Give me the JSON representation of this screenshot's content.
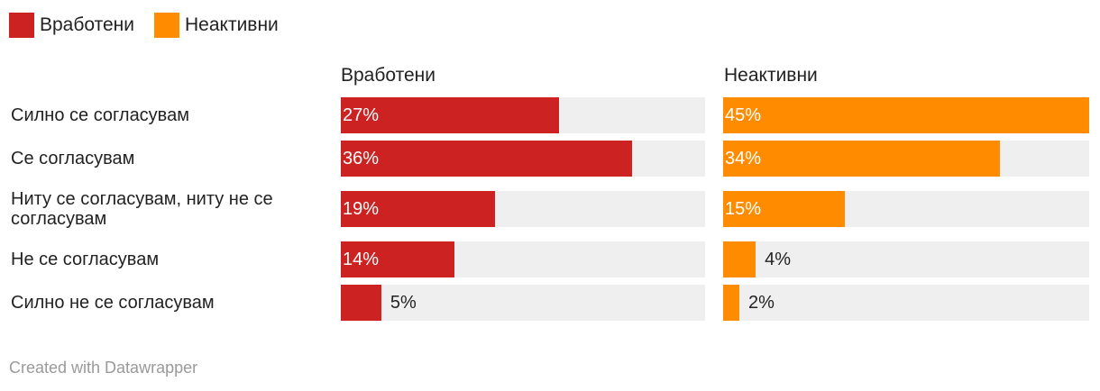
{
  "legend": [
    {
      "label": "Вработени",
      "color": "#cc2222"
    },
    {
      "label": "Неактивни",
      "color": "#ff8c00"
    }
  ],
  "footer": "Created with Datawrapper",
  "chart_data": {
    "type": "bar",
    "orientation": "horizontal",
    "categories": [
      "Силно се согласувам",
      "Се согласувам",
      "Ниту се согласувам, ниту не се согласувам",
      "Не се согласувам",
      "Силно не се согласувам"
    ],
    "series": [
      {
        "name": "Вработени",
        "color": "#cc2222",
        "values": [
          27,
          36,
          19,
          14,
          5
        ],
        "labels": [
          "27%",
          "36%",
          "19%",
          "14%",
          "5%"
        ]
      },
      {
        "name": "Неактивни",
        "color": "#ff8c00",
        "values": [
          45,
          34,
          15,
          4,
          2
        ],
        "labels": [
          "45%",
          "34%",
          "15%",
          "4%",
          "2%"
        ]
      }
    ],
    "xlim": [
      0,
      45
    ],
    "unit": "%"
  }
}
